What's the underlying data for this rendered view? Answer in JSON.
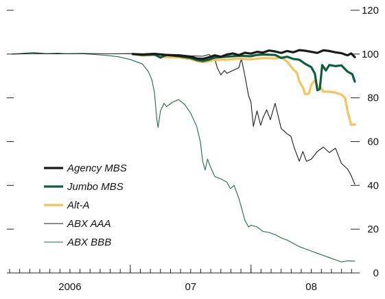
{
  "chart_data": {
    "type": "line",
    "xlim": [
      2005.5,
      2008.4
    ],
    "ylim": [
      0,
      120
    ],
    "yticks": [
      0,
      20,
      40,
      60,
      80,
      100,
      120
    ],
    "x_tick_labels": [
      {
        "label": "2006",
        "x": 2006.0
      },
      {
        "label": "07",
        "x": 2007.0
      },
      {
        "label": "08",
        "x": 2008.0
      }
    ],
    "year_boundaries": [
      2006.5,
      2007.5
    ],
    "legend_position": "lower-left",
    "grid": false,
    "series": [
      {
        "name": "Agency MBS",
        "color": "#1a1a1a",
        "width": 3.2,
        "points": [
          [
            2006.52,
            100
          ],
          [
            2006.6,
            99.8
          ],
          [
            2006.7,
            100.1
          ],
          [
            2006.8,
            99.6
          ],
          [
            2006.9,
            99.3
          ],
          [
            2007.0,
            98.8
          ],
          [
            2007.05,
            98.0
          ],
          [
            2007.1,
            97.8
          ],
          [
            2007.15,
            98.5
          ],
          [
            2007.2,
            99.4
          ],
          [
            2007.25,
            98.8
          ],
          [
            2007.3,
            99.8
          ],
          [
            2007.35,
            100.3
          ],
          [
            2007.4,
            99.5
          ],
          [
            2007.45,
            100.6
          ],
          [
            2007.5,
            100.2
          ],
          [
            2007.55,
            101.0
          ],
          [
            2007.6,
            100.7
          ],
          [
            2007.65,
            101.6
          ],
          [
            2007.7,
            101.2
          ],
          [
            2007.75,
            100.5
          ],
          [
            2007.8,
            101.4
          ],
          [
            2007.85,
            100.8
          ],
          [
            2007.9,
            101.8
          ],
          [
            2007.95,
            101.5
          ],
          [
            2008.0,
            101.0
          ],
          [
            2008.05,
            100.5
          ],
          [
            2008.1,
            101.7
          ],
          [
            2008.15,
            101.4
          ],
          [
            2008.2,
            100.8
          ],
          [
            2008.25,
            100.4
          ],
          [
            2008.3,
            99.4
          ],
          [
            2008.33,
            100.3
          ],
          [
            2008.36,
            98.6
          ]
        ]
      },
      {
        "name": "Jumbo MBS",
        "color": "#0d5e3c",
        "width": 3.2,
        "points": [
          [
            2006.52,
            100
          ],
          [
            2006.6,
            99.6
          ],
          [
            2006.7,
            99.8
          ],
          [
            2006.75,
            98.4
          ],
          [
            2006.8,
            99.6
          ],
          [
            2006.9,
            99.0
          ],
          [
            2007.0,
            98.2
          ],
          [
            2007.05,
            97.3
          ],
          [
            2007.1,
            96.8
          ],
          [
            2007.15,
            97.4
          ],
          [
            2007.2,
            98.4
          ],
          [
            2007.3,
            98.8
          ],
          [
            2007.4,
            99.2
          ],
          [
            2007.5,
            99.0
          ],
          [
            2007.55,
            99.6
          ],
          [
            2007.6,
            99.8
          ],
          [
            2007.7,
            99.6
          ],
          [
            2007.75,
            98.2
          ],
          [
            2007.8,
            98.8
          ],
          [
            2007.85,
            97.8
          ],
          [
            2007.9,
            97.4
          ],
          [
            2007.95,
            95.5
          ],
          [
            2008.0,
            94.0
          ],
          [
            2008.03,
            91.0
          ],
          [
            2008.05,
            83.5
          ],
          [
            2008.07,
            84.0
          ],
          [
            2008.09,
            95.0
          ],
          [
            2008.12,
            92.5
          ],
          [
            2008.15,
            95.0
          ],
          [
            2008.2,
            94.5
          ],
          [
            2008.25,
            94.8
          ],
          [
            2008.3,
            92.0
          ],
          [
            2008.34,
            90.8
          ],
          [
            2008.36,
            87.4
          ]
        ]
      },
      {
        "name": "Alt-A",
        "color": "#f5c35a",
        "width": 3.2,
        "points": [
          [
            2006.52,
            100
          ],
          [
            2006.6,
            99.3
          ],
          [
            2006.7,
            99.6
          ],
          [
            2006.8,
            98.6
          ],
          [
            2006.9,
            98.5
          ],
          [
            2007.0,
            97.7
          ],
          [
            2007.05,
            96.8
          ],
          [
            2007.1,
            96.3
          ],
          [
            2007.15,
            96.7
          ],
          [
            2007.2,
            97.4
          ],
          [
            2007.3,
            97.4
          ],
          [
            2007.4,
            97.9
          ],
          [
            2007.5,
            97.6
          ],
          [
            2007.6,
            98.2
          ],
          [
            2007.7,
            98.0
          ],
          [
            2007.75,
            98.6
          ],
          [
            2007.8,
            96.5
          ],
          [
            2007.85,
            93.0
          ],
          [
            2007.88,
            91.5
          ],
          [
            2007.9,
            87.5
          ],
          [
            2007.93,
            84.8
          ],
          [
            2007.95,
            81.6
          ],
          [
            2007.98,
            82.0
          ],
          [
            2008.0,
            86.0
          ],
          [
            2008.03,
            88.0
          ],
          [
            2008.05,
            85.5
          ],
          [
            2008.08,
            84.5
          ],
          [
            2008.1,
            82.8
          ],
          [
            2008.15,
            82.8
          ],
          [
            2008.2,
            82.4
          ],
          [
            2008.25,
            81.5
          ],
          [
            2008.28,
            79.8
          ],
          [
            2008.3,
            74.0
          ],
          [
            2008.33,
            67.6
          ],
          [
            2008.36,
            67.8
          ]
        ]
      },
      {
        "name": "ABX AAA",
        "color": "#1a1a1a",
        "width": 1.1,
        "points": [
          [
            2005.52,
            100
          ],
          [
            2005.7,
            100.2
          ],
          [
            2005.9,
            100.1
          ],
          [
            2006.1,
            100.3
          ],
          [
            2006.3,
            100.1
          ],
          [
            2006.5,
            100.2
          ],
          [
            2006.7,
            100.0
          ],
          [
            2006.9,
            99.8
          ],
          [
            2007.0,
            99.2
          ],
          [
            2007.1,
            99.0
          ],
          [
            2007.15,
            99.8
          ],
          [
            2007.2,
            98.0
          ],
          [
            2007.22,
            93.8
          ],
          [
            2007.25,
            90.5
          ],
          [
            2007.28,
            92.5
          ],
          [
            2007.3,
            91.2
          ],
          [
            2007.35,
            92.5
          ],
          [
            2007.4,
            93.8
          ],
          [
            2007.42,
            98.0
          ],
          [
            2007.45,
            90.0
          ],
          [
            2007.48,
            81.0
          ],
          [
            2007.5,
            78.0
          ],
          [
            2007.52,
            67.0
          ],
          [
            2007.55,
            74.0
          ],
          [
            2007.58,
            67.5
          ],
          [
            2007.6,
            71.0
          ],
          [
            2007.63,
            74.5
          ],
          [
            2007.66,
            70.0
          ],
          [
            2007.7,
            77.5
          ],
          [
            2007.75,
            66.0
          ],
          [
            2007.8,
            63.5
          ],
          [
            2007.83,
            62.5
          ],
          [
            2007.86,
            57.0
          ],
          [
            2007.9,
            51.0
          ],
          [
            2007.93,
            55.5
          ],
          [
            2007.96,
            51.0
          ],
          [
            2008.0,
            52.0
          ],
          [
            2008.05,
            55.5
          ],
          [
            2008.1,
            57.5
          ],
          [
            2008.15,
            55.0
          ],
          [
            2008.2,
            57.0
          ],
          [
            2008.25,
            50.0
          ],
          [
            2008.3,
            47.5
          ],
          [
            2008.33,
            44.5
          ],
          [
            2008.36,
            40.5
          ]
        ]
      },
      {
        "name": "ABX BBB",
        "color": "#1c6b45",
        "width": 1.1,
        "points": [
          [
            2005.52,
            100
          ],
          [
            2005.6,
            100.3
          ],
          [
            2005.7,
            100.7
          ],
          [
            2005.8,
            100.2
          ],
          [
            2005.9,
            100.4
          ],
          [
            2006.0,
            100.1
          ],
          [
            2006.1,
            100.2
          ],
          [
            2006.2,
            99.8
          ],
          [
            2006.3,
            99.4
          ],
          [
            2006.4,
            98.8
          ],
          [
            2006.5,
            97.5
          ],
          [
            2006.6,
            95.5
          ],
          [
            2006.65,
            92.0
          ],
          [
            2006.68,
            88.0
          ],
          [
            2006.7,
            82.5
          ],
          [
            2006.72,
            70.0
          ],
          [
            2006.73,
            66.5
          ],
          [
            2006.75,
            74.0
          ],
          [
            2006.78,
            77.5
          ],
          [
            2006.8,
            76.0
          ],
          [
            2006.85,
            78.0
          ],
          [
            2006.9,
            79.2
          ],
          [
            2006.95,
            77.0
          ],
          [
            2007.0,
            73.0
          ],
          [
            2007.05,
            67.0
          ],
          [
            2007.08,
            60.0
          ],
          [
            2007.1,
            51.0
          ],
          [
            2007.12,
            47.0
          ],
          [
            2007.14,
            52.0
          ],
          [
            2007.16,
            49.0
          ],
          [
            2007.18,
            46.5
          ],
          [
            2007.2,
            44.0
          ],
          [
            2007.25,
            43.0
          ],
          [
            2007.3,
            41.5
          ],
          [
            2007.33,
            38.5
          ],
          [
            2007.36,
            40.0
          ],
          [
            2007.4,
            34.0
          ],
          [
            2007.42,
            30.0
          ],
          [
            2007.45,
            24.0
          ],
          [
            2007.48,
            21.0
          ],
          [
            2007.5,
            21.8
          ],
          [
            2007.55,
            21.0
          ],
          [
            2007.6,
            19.0
          ],
          [
            2007.65,
            18.5
          ],
          [
            2007.7,
            17.5
          ],
          [
            2007.75,
            16.0
          ],
          [
            2007.8,
            15.0
          ],
          [
            2007.85,
            13.5
          ],
          [
            2007.9,
            12.0
          ],
          [
            2007.95,
            11.0
          ],
          [
            2008.0,
            10.0
          ],
          [
            2008.05,
            9.0
          ],
          [
            2008.1,
            8.0
          ],
          [
            2008.15,
            7.0
          ],
          [
            2008.2,
            6.0
          ],
          [
            2008.25,
            5.0
          ],
          [
            2008.3,
            5.5
          ],
          [
            2008.36,
            5.4
          ]
        ]
      }
    ]
  }
}
